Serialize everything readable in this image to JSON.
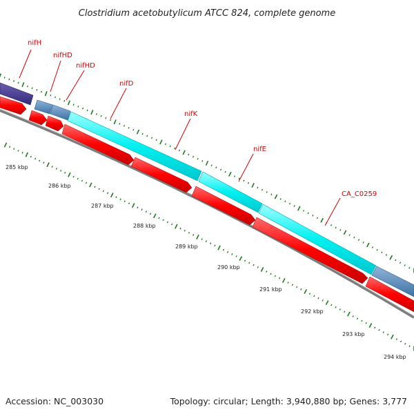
{
  "title": "Clostridium acetobutylicum ATCC 824, complete genome",
  "footer": {
    "accession": "Accession: NC_003030",
    "summary": "Topology: circular; Length: 3,940,880 bp; Genes: 3,777"
  },
  "colors": {
    "gene_red": "#ff0000",
    "cds_cyan": "#00ffff",
    "cds_steel": "#4f86b8",
    "cds_indigo": "#473c8b",
    "backbone": "#888888",
    "tick_green": "#1b7a1b",
    "label_red": "#d40000"
  },
  "gene_labels": [
    "nifH",
    "nifHD",
    "nifHD",
    "nifD",
    "nifK",
    "nifE",
    "CA_C0259"
  ],
  "kbp_labels": [
    "285 kbp",
    "286 kbp",
    "287 kbp",
    "288 kbp",
    "289 kbp",
    "290 kbp",
    "291 kbp",
    "292 kbp",
    "293 kbp",
    "294 kbp"
  ]
}
